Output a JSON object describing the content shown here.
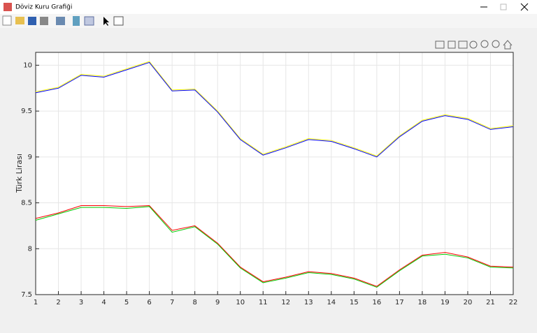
{
  "window": {
    "title": "Döviz Kuru Grafiği"
  },
  "chart_data": {
    "type": "line",
    "x": [
      1,
      2,
      3,
      4,
      5,
      6,
      7,
      8,
      9,
      10,
      11,
      12,
      13,
      14,
      15,
      16,
      17,
      18,
      19,
      20,
      21,
      22
    ],
    "xlim": [
      1,
      22
    ],
    "xticks": [
      1,
      2,
      3,
      4,
      5,
      6,
      7,
      8,
      9,
      10,
      11,
      12,
      13,
      14,
      15,
      16,
      17,
      18,
      19,
      20,
      21,
      22
    ],
    "ylim": [
      7.5,
      10.14
    ],
    "yticks": [
      7.5,
      8,
      8.5,
      9,
      9.5,
      10
    ],
    "ylabel": "Türk Lirası",
    "grid": true,
    "series": [
      {
        "color": "#ffff00",
        "values": [
          9.71,
          9.76,
          9.9,
          9.88,
          9.96,
          10.04,
          9.73,
          9.74,
          9.5,
          9.2,
          9.03,
          9.11,
          9.2,
          9.18,
          9.1,
          9.01,
          9.23,
          9.4,
          9.46,
          9.42,
          9.31,
          9.34
        ]
      },
      {
        "color": "#0000ff",
        "values": [
          9.7,
          9.75,
          9.89,
          9.87,
          9.95,
          10.03,
          9.72,
          9.73,
          9.49,
          9.19,
          9.02,
          9.1,
          9.19,
          9.17,
          9.09,
          9.0,
          9.22,
          9.39,
          9.45,
          9.41,
          9.3,
          9.33
        ]
      },
      {
        "color": "#ff0000",
        "values": [
          8.33,
          8.39,
          8.47,
          8.47,
          8.46,
          8.47,
          8.2,
          8.25,
          8.06,
          7.8,
          7.64,
          7.69,
          7.75,
          7.73,
          7.68,
          7.59,
          7.77,
          7.93,
          7.96,
          7.91,
          7.81,
          7.8
        ]
      },
      {
        "color": "#00cc00",
        "values": [
          8.31,
          8.38,
          8.45,
          8.45,
          8.44,
          8.46,
          8.18,
          8.24,
          8.05,
          7.79,
          7.63,
          7.68,
          7.74,
          7.72,
          7.67,
          7.58,
          7.76,
          7.92,
          7.94,
          7.9,
          7.8,
          7.79
        ]
      }
    ]
  }
}
